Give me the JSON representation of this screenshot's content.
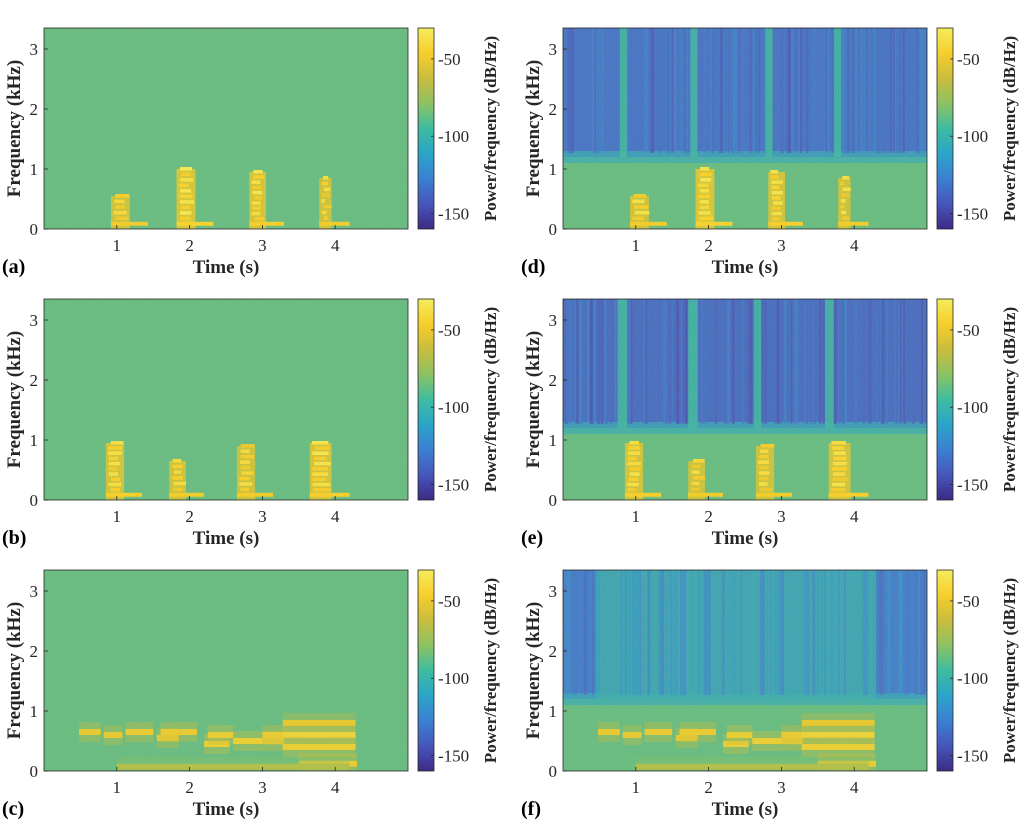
{
  "figure": {
    "colorscale": [
      "#3e2a85",
      "#4656bb",
      "#3b80d2",
      "#2ba4c8",
      "#3ebca0",
      "#8cc263",
      "#c9bd3d",
      "#f7ce2b",
      "#f4ec5c"
    ],
    "cb_min": -160,
    "cb_max": -30
  },
  "chart_data": [
    {
      "type": "heatmap",
      "panel_label": "(a)",
      "xlabel": "Time (s)",
      "ylabel": "Frequency (kHz)",
      "cblabel": "Power/frequency (dB/Hz)",
      "xlim": [
        0,
        5
      ],
      "ylim": [
        0,
        3.35
      ],
      "x_ticks": [
        "1",
        "2",
        "3",
        "4"
      ],
      "y_ticks": [
        "0",
        "1",
        "2",
        "3"
      ],
      "cb_ticks": [
        "-50",
        "-100",
        "-150"
      ],
      "cb_tick_values": [
        -50,
        -100,
        -150
      ],
      "background_db": -88,
      "lowpass_cutoff_khz": null,
      "lowpass_floor_db": null,
      "pass_columns": [],
      "syllables": [
        {
          "start_s": 0.92,
          "end_s": 1.18,
          "top_khz": 0.55,
          "peak_db": -42
        },
        {
          "start_s": 1.82,
          "end_s": 2.08,
          "top_khz": 1.0,
          "peak_db": -38
        },
        {
          "start_s": 2.82,
          "end_s": 3.05,
          "top_khz": 0.95,
          "peak_db": -40
        },
        {
          "start_s": 3.78,
          "end_s": 3.95,
          "top_khz": 0.85,
          "peak_db": -42
        }
      ],
      "notes": []
    },
    {
      "type": "heatmap",
      "panel_label": "(b)",
      "xlabel": "Time (s)",
      "ylabel": "Frequency (kHz)",
      "cblabel": "Power/frequency (dB/Hz)",
      "xlim": [
        0,
        5
      ],
      "ylim": [
        0,
        3.35
      ],
      "x_ticks": [
        "1",
        "2",
        "3",
        "4"
      ],
      "y_ticks": [
        "0",
        "1",
        "2",
        "3"
      ],
      "cb_ticks": [
        "-50",
        "-100",
        "-150"
      ],
      "cb_tick_values": [
        -50,
        -100,
        -150
      ],
      "background_db": -88,
      "lowpass_cutoff_khz": null,
      "lowpass_floor_db": null,
      "pass_columns": [],
      "syllables": [
        {
          "start_s": 0.85,
          "end_s": 1.1,
          "top_khz": 0.95,
          "peak_db": -40
        },
        {
          "start_s": 1.72,
          "end_s": 1.95,
          "top_khz": 0.65,
          "peak_db": -42
        },
        {
          "start_s": 2.65,
          "end_s": 2.9,
          "top_khz": 0.9,
          "peak_db": -42
        },
        {
          "start_s": 3.65,
          "end_s": 3.95,
          "top_khz": 0.95,
          "peak_db": -40
        }
      ],
      "notes": []
    },
    {
      "type": "heatmap",
      "panel_label": "(c)",
      "xlabel": "Time (s)",
      "ylabel": "Frequency (kHz)",
      "cblabel": "Power/frequency (dB/Hz)",
      "xlim": [
        0,
        5
      ],
      "ylim": [
        0,
        3.35
      ],
      "x_ticks": [
        "1",
        "2",
        "3",
        "4"
      ],
      "y_ticks": [
        "0",
        "1",
        "2",
        "3"
      ],
      "cb_ticks": [
        "-50",
        "-100",
        "-150"
      ],
      "cb_tick_values": [
        -50,
        -100,
        -150
      ],
      "background_db": -88,
      "lowpass_cutoff_khz": null,
      "lowpass_floor_db": null,
      "pass_columns": [],
      "syllables": [],
      "notes": [
        {
          "start_s": 0.48,
          "end_s": 0.78,
          "freq_khz": 0.65,
          "db": -45
        },
        {
          "start_s": 0.82,
          "end_s": 1.08,
          "freq_khz": 0.6,
          "db": -46
        },
        {
          "start_s": 1.12,
          "end_s": 1.5,
          "freq_khz": 0.65,
          "db": -44
        },
        {
          "start_s": 1.55,
          "end_s": 1.85,
          "freq_khz": 0.55,
          "db": -45
        },
        {
          "start_s": 1.6,
          "end_s": 2.1,
          "freq_khz": 0.65,
          "db": -44
        },
        {
          "start_s": 2.2,
          "end_s": 2.55,
          "freq_khz": 0.45,
          "db": -42
        },
        {
          "start_s": 2.25,
          "end_s": 2.6,
          "freq_khz": 0.6,
          "db": -43
        },
        {
          "start_s": 2.6,
          "end_s": 3.3,
          "freq_khz": 0.5,
          "db": -42
        },
        {
          "start_s": 3.0,
          "end_s": 3.3,
          "freq_khz": 0.6,
          "db": -44
        },
        {
          "start_s": 3.28,
          "end_s": 4.28,
          "freq_khz": 0.8,
          "db": -46
        },
        {
          "start_s": 3.28,
          "end_s": 4.28,
          "freq_khz": 0.6,
          "db": -40
        },
        {
          "start_s": 3.28,
          "end_s": 4.28,
          "freq_khz": 0.4,
          "db": -42
        },
        {
          "start_s": 3.5,
          "end_s": 4.3,
          "freq_khz": 0.12,
          "db": -44
        },
        {
          "start_s": 1.0,
          "end_s": 4.2,
          "freq_khz": 0.07,
          "db": -62
        }
      ]
    },
    {
      "type": "heatmap",
      "panel_label": "(d)",
      "xlabel": "Time (s)",
      "ylabel": "Frequency (kHz)",
      "cblabel": "Power/frequency (dB/Hz)",
      "xlim": [
        0,
        5
      ],
      "ylim": [
        0,
        3.35
      ],
      "x_ticks": [
        "1",
        "2",
        "3",
        "4"
      ],
      "y_ticks": [
        "0",
        "1",
        "2",
        "3"
      ],
      "cb_ticks": [
        "-50",
        "-100",
        "-150"
      ],
      "cb_tick_values": [
        -50,
        -100,
        -150
      ],
      "background_db": -88,
      "lowpass_cutoff_khz": 1.2,
      "lowpass_floor_db": -132,
      "pass_columns": [
        [
          0.78,
          0.88
        ],
        [
          1.75,
          1.85
        ],
        [
          2.78,
          2.88
        ],
        [
          3.72,
          3.82
        ]
      ],
      "syllables": [
        {
          "start_s": 0.92,
          "end_s": 1.18,
          "top_khz": 0.55,
          "peak_db": -42
        },
        {
          "start_s": 1.82,
          "end_s": 2.08,
          "top_khz": 1.0,
          "peak_db": -38
        },
        {
          "start_s": 2.82,
          "end_s": 3.05,
          "top_khz": 0.95,
          "peak_db": -40
        },
        {
          "start_s": 3.78,
          "end_s": 3.95,
          "top_khz": 0.85,
          "peak_db": -42
        }
      ],
      "notes": []
    },
    {
      "type": "heatmap",
      "panel_label": "(e)",
      "xlabel": "Time (s)",
      "ylabel": "Frequency (kHz)",
      "cblabel": "Power/frequency (dB/Hz)",
      "xlim": [
        0,
        5
      ],
      "ylim": [
        0,
        3.35
      ],
      "x_ticks": [
        "1",
        "2",
        "3",
        "4"
      ],
      "y_ticks": [
        "0",
        "1",
        "2",
        "3"
      ],
      "cb_ticks": [
        "-50",
        "-100",
        "-150"
      ],
      "cb_tick_values": [
        -50,
        -100,
        -150
      ],
      "background_db": -88,
      "lowpass_cutoff_khz": 1.2,
      "lowpass_floor_db": -135,
      "pass_columns": [
        [
          0.75,
          0.88
        ],
        [
          1.72,
          1.85
        ],
        [
          2.62,
          2.72
        ],
        [
          3.6,
          3.72
        ]
      ],
      "syllables": [
        {
          "start_s": 0.85,
          "end_s": 1.1,
          "top_khz": 0.95,
          "peak_db": -40
        },
        {
          "start_s": 1.72,
          "end_s": 1.95,
          "top_khz": 0.65,
          "peak_db": -42
        },
        {
          "start_s": 2.65,
          "end_s": 2.9,
          "top_khz": 0.9,
          "peak_db": -42
        },
        {
          "start_s": 3.65,
          "end_s": 3.95,
          "top_khz": 0.95,
          "peak_db": -40
        }
      ],
      "notes": []
    },
    {
      "type": "heatmap",
      "panel_label": "(f)",
      "xlabel": "Time (s)",
      "ylabel": "Frequency (kHz)",
      "cblabel": "Power/frequency (dB/Hz)",
      "xlim": [
        0,
        5
      ],
      "ylim": [
        0,
        3.35
      ],
      "x_ticks": [
        "1",
        "2",
        "3",
        "4"
      ],
      "y_ticks": [
        "0",
        "1",
        "2",
        "3"
      ],
      "cb_ticks": [
        "-50",
        "-100",
        "-150"
      ],
      "cb_tick_values": [
        -50,
        -100,
        -150
      ],
      "background_db": -88,
      "lowpass_cutoff_khz": 1.2,
      "lowpass_floor_db": -128,
      "pass_columns": [
        [
          0.45,
          4.3
        ]
      ],
      "syllables": [],
      "notes": [
        {
          "start_s": 0.48,
          "end_s": 0.78,
          "freq_khz": 0.65,
          "db": -45
        },
        {
          "start_s": 0.82,
          "end_s": 1.08,
          "freq_khz": 0.6,
          "db": -46
        },
        {
          "start_s": 1.12,
          "end_s": 1.5,
          "freq_khz": 0.65,
          "db": -44
        },
        {
          "start_s": 1.55,
          "end_s": 1.85,
          "freq_khz": 0.55,
          "db": -45
        },
        {
          "start_s": 1.6,
          "end_s": 2.1,
          "freq_khz": 0.65,
          "db": -44
        },
        {
          "start_s": 2.2,
          "end_s": 2.55,
          "freq_khz": 0.45,
          "db": -42
        },
        {
          "start_s": 2.25,
          "end_s": 2.6,
          "freq_khz": 0.6,
          "db": -43
        },
        {
          "start_s": 2.6,
          "end_s": 3.3,
          "freq_khz": 0.5,
          "db": -42
        },
        {
          "start_s": 3.0,
          "end_s": 3.3,
          "freq_khz": 0.6,
          "db": -44
        },
        {
          "start_s": 3.28,
          "end_s": 4.28,
          "freq_khz": 0.8,
          "db": -46
        },
        {
          "start_s": 3.28,
          "end_s": 4.28,
          "freq_khz": 0.6,
          "db": -40
        },
        {
          "start_s": 3.28,
          "end_s": 4.28,
          "freq_khz": 0.4,
          "db": -42
        },
        {
          "start_s": 3.5,
          "end_s": 4.3,
          "freq_khz": 0.12,
          "db": -44
        },
        {
          "start_s": 1.0,
          "end_s": 4.2,
          "freq_khz": 0.07,
          "db": -62
        }
      ]
    }
  ]
}
